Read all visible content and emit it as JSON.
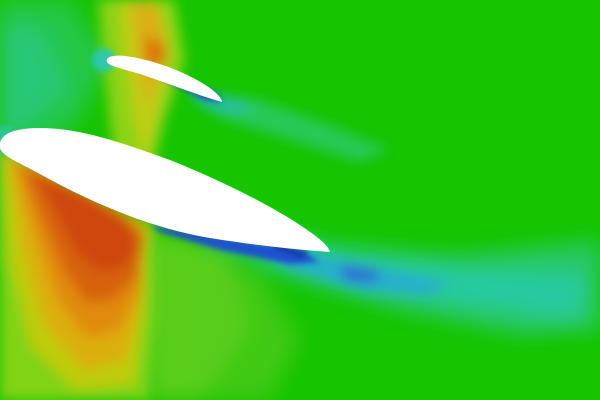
{
  "image": {
    "description_kind": "cfd-pressure-contour",
    "colors": {
      "background_green": "#16c400",
      "light_green": "#52cc25",
      "yellow_green": "#9fd51a",
      "yellow": "#d7c90e",
      "orange": "#e59a12",
      "red_orange": "#d7570a",
      "deep_red": "#cf3f07",
      "cyan": "#28c9a0",
      "light_blue": "#27a9d8",
      "blue": "#2e5ed6",
      "deep_blue": "#173aa8",
      "airfoil_white": "#ffffff"
    }
  }
}
